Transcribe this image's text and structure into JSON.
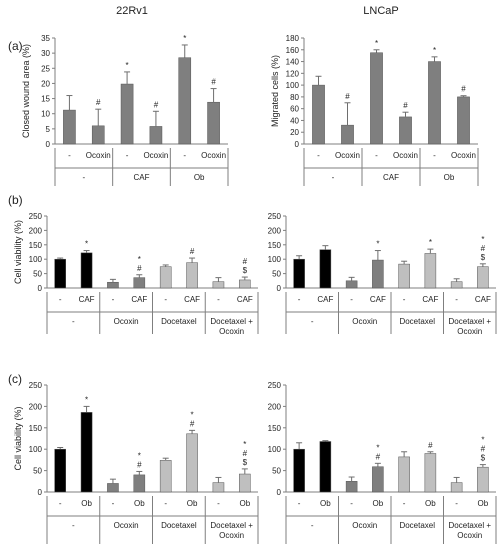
{
  "colors": {
    "black": "#000000",
    "dark_gray": "#7f7f7f",
    "light_gray": "#bfbfbf",
    "axis": "#7f7f7f"
  },
  "columns": {
    "left_title": "22Rv1",
    "right_title": "LNCaP"
  },
  "chart_data": [
    {
      "id": "a-left",
      "panel_label": "(a)",
      "type": "bar",
      "ylabel": "Closed wound area (%)",
      "ylim": [
        0,
        35
      ],
      "yticks": [
        0,
        5,
        10,
        15,
        20,
        25,
        30,
        35
      ],
      "grid": false,
      "categories": [
        "-",
        "Ocoxin",
        "-",
        "Ocoxin",
        "-",
        "Ocoxin"
      ],
      "groups": [
        {
          "label": "-",
          "span": 2
        },
        {
          "label": "CAF",
          "span": 2
        },
        {
          "label": "Ob",
          "span": 2
        }
      ],
      "values": [
        11.2,
        6.0,
        19.8,
        5.8,
        28.5,
        13.8
      ],
      "errors": [
        4.8,
        5.5,
        4.0,
        5.0,
        4.2,
        4.5
      ],
      "annotations": [
        "",
        "#",
        "*",
        "#",
        "*",
        "#"
      ],
      "fills": [
        "dark_gray",
        "dark_gray",
        "dark_gray",
        "dark_gray",
        "dark_gray",
        "dark_gray"
      ]
    },
    {
      "id": "a-right",
      "panel_label": "",
      "type": "bar",
      "ylabel": "Migrated cells (%)",
      "ylim": [
        0,
        180
      ],
      "yticks": [
        0,
        20,
        40,
        60,
        80,
        100,
        120,
        140,
        160,
        180
      ],
      "grid": false,
      "categories": [
        "-",
        "Ocoxin",
        "-",
        "Ocoxin",
        "-",
        "Ocoxin"
      ],
      "groups": [
        {
          "label": "-",
          "span": 2
        },
        {
          "label": "CAF",
          "span": 2
        },
        {
          "label": "Ob",
          "span": 2
        }
      ],
      "values": [
        100,
        32,
        155,
        46,
        140,
        80
      ],
      "errors": [
        15,
        38,
        5,
        8,
        8,
        2
      ],
      "annotations": [
        "",
        "#",
        "*",
        "#",
        "*",
        "#"
      ],
      "fills": [
        "dark_gray",
        "dark_gray",
        "dark_gray",
        "dark_gray",
        "dark_gray",
        "dark_gray"
      ]
    },
    {
      "id": "b-left",
      "panel_label": "(b)",
      "type": "bar",
      "ylabel": "Cell viability (%)",
      "ylim": [
        0,
        250
      ],
      "yticks": [
        0,
        50,
        100,
        150,
        200,
        250
      ],
      "grid": false,
      "categories": [
        "-",
        "CAF",
        "-",
        "CAF",
        "-",
        "CAF",
        "-",
        "CAF"
      ],
      "groups": [
        {
          "label": "-",
          "span": 2
        },
        {
          "label": "Ocoxin",
          "span": 2
        },
        {
          "label": "Docetaxel",
          "span": 2
        },
        {
          "label": "Docetaxel + Ocoxin",
          "span": 2
        }
      ],
      "values": [
        100,
        122,
        20,
        36,
        74,
        88,
        22,
        28
      ],
      "errors": [
        4,
        8,
        10,
        10,
        6,
        16,
        14,
        10
      ],
      "annotations": [
        "",
        "*",
        "",
        "* #",
        "",
        "#",
        "",
        "# $"
      ],
      "fills": [
        "black",
        "black",
        "dark_gray",
        "dark_gray",
        "light_gray",
        "light_gray",
        "light_gray",
        "light_gray"
      ]
    },
    {
      "id": "b-right",
      "panel_label": "",
      "type": "bar",
      "ylabel": "",
      "ylim": [
        0,
        250
      ],
      "yticks": [
        0,
        50,
        100,
        150,
        200,
        250
      ],
      "grid": false,
      "categories": [
        "-",
        "CAF",
        "-",
        "CAF",
        "-",
        "CAF",
        "-",
        "CAF"
      ],
      "groups": [
        {
          "label": "-",
          "span": 2
        },
        {
          "label": "Ocoxin",
          "span": 2
        },
        {
          "label": "Docetaxel",
          "span": 2
        },
        {
          "label": "Docetaxel + Ocoxin",
          "span": 2
        }
      ],
      "values": [
        100,
        133,
        25,
        97,
        83,
        120,
        22,
        74
      ],
      "errors": [
        12,
        14,
        12,
        33,
        10,
        15,
        10,
        10
      ],
      "annotations": [
        "",
        "",
        "",
        "*",
        "",
        "*",
        "",
        "* # $"
      ],
      "fills": [
        "black",
        "black",
        "dark_gray",
        "dark_gray",
        "light_gray",
        "light_gray",
        "light_gray",
        "light_gray"
      ]
    },
    {
      "id": "c-left",
      "panel_label": "(c)",
      "type": "bar",
      "ylabel": "Cell viability (%)",
      "ylim": [
        0,
        250
      ],
      "yticks": [
        0,
        50,
        100,
        150,
        200,
        250
      ],
      "grid": false,
      "categories": [
        "-",
        "Ob",
        "-",
        "Ob",
        "-",
        "Ob",
        "-",
        "Ob"
      ],
      "groups": [
        {
          "label": "-",
          "span": 2
        },
        {
          "label": "Ocoxin",
          "span": 2
        },
        {
          "label": "Docetaxel",
          "span": 2
        },
        {
          "label": "Docetaxel + Ocoxin",
          "span": 2
        }
      ],
      "values": [
        100,
        186,
        20,
        40,
        74,
        136,
        22,
        42
      ],
      "errors": [
        4,
        14,
        10,
        8,
        5,
        8,
        12,
        12
      ],
      "annotations": [
        "",
        "*",
        "",
        "* #",
        "",
        "* #",
        "",
        "* # $"
      ],
      "fills": [
        "black",
        "black",
        "dark_gray",
        "dark_gray",
        "light_gray",
        "light_gray",
        "light_gray",
        "light_gray"
      ]
    },
    {
      "id": "c-right",
      "panel_label": "",
      "type": "bar",
      "ylabel": "",
      "ylim": [
        0,
        250
      ],
      "yticks": [
        0,
        50,
        100,
        150,
        200,
        250
      ],
      "grid": false,
      "categories": [
        "-",
        "Ob",
        "-",
        "Ob",
        "-",
        "Ob",
        "-",
        "Ob"
      ],
      "groups": [
        {
          "label": "-",
          "span": 2
        },
        {
          "label": "Ocoxin",
          "span": 2
        },
        {
          "label": "Docetaxel",
          "span": 2
        },
        {
          "label": "Docetaxel + Ocoxin",
          "span": 2
        }
      ],
      "values": [
        100,
        118,
        25,
        59,
        82,
        90,
        22,
        58
      ],
      "errors": [
        15,
        2,
        10,
        8,
        12,
        4,
        12,
        6
      ],
      "annotations": [
        "",
        "",
        "",
        "* #",
        "",
        "#",
        "",
        "* # $"
      ],
      "fills": [
        "black",
        "black",
        "dark_gray",
        "dark_gray",
        "light_gray",
        "light_gray",
        "light_gray",
        "light_gray"
      ]
    }
  ]
}
